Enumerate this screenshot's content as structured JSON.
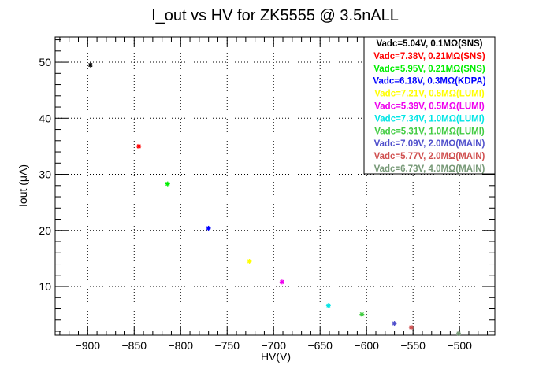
{
  "chart_data": {
    "type": "scatter",
    "title": "I_out vs HV for ZK5555 @ 3.5nALL",
    "xlabel": "HV(V)",
    "ylabel": "Iout (μA)",
    "xlim": [
      -935,
      -462
    ],
    "ylim": [
      1.3,
      54.5
    ],
    "xticks": [
      -900,
      -850,
      -800,
      -750,
      -700,
      -650,
      -600,
      -550,
      -500
    ],
    "yticks": [
      10,
      20,
      30,
      40,
      50
    ],
    "xtick_labels": [
      "−900",
      "−850",
      "−800",
      "−750",
      "−700",
      "−650",
      "−600",
      "−550",
      "−500"
    ],
    "ytick_labels": [
      "10",
      "20",
      "30",
      "40",
      "50"
    ],
    "grid": true,
    "legend_position": "top-right",
    "series": [
      {
        "name": "Vadc=5.04V, 0.1MΩ(SNS)",
        "color": "#000000",
        "x": [
          -897
        ],
        "y": [
          49.5
        ]
      },
      {
        "name": "Vadc=7.38V, 0.21MΩ(SNS)",
        "color": "#ff0000",
        "x": [
          -845
        ],
        "y": [
          35.0
        ]
      },
      {
        "name": "Vadc=5.95V, 0.21MΩ(SNS)",
        "color": "#00ee00",
        "x": [
          -814
        ],
        "y": [
          28.3
        ]
      },
      {
        "name": "Vadc=6.18V, 0.3MΩ(KDPA)",
        "color": "#0000ff",
        "x": [
          -770
        ],
        "y": [
          20.4
        ]
      },
      {
        "name": "Vadc=7.21V, 0.5MΩ(LUMI)",
        "color": "#ffff00",
        "x": [
          -726
        ],
        "y": [
          14.5
        ]
      },
      {
        "name": "Vadc=5.39V, 0.5MΩ(LUMI)",
        "color": "#ee00ee",
        "x": [
          -691
        ],
        "y": [
          10.8
        ]
      },
      {
        "name": "Vadc=7.34V, 1.0MΩ(LUMI)",
        "color": "#00e5e5",
        "x": [
          -641
        ],
        "y": [
          6.6
        ]
      },
      {
        "name": "Vadc=5.31V, 1.0MΩ(LUMI)",
        "color": "#44cc44",
        "x": [
          -605
        ],
        "y": [
          5.0
        ]
      },
      {
        "name": "Vadc=7.09V, 2.0MΩ(MAIN)",
        "color": "#5050cc",
        "x": [
          -570
        ],
        "y": [
          3.4
        ]
      },
      {
        "name": "Vadc=5.77V, 2.0MΩ(MAIN)",
        "color": "#d05050",
        "x": [
          -552
        ],
        "y": [
          2.7
        ]
      },
      {
        "name": "Vadc=6.73V, 4.0MΩ(MAIN)",
        "color": "#779977",
        "x": [
          -501
        ],
        "y": [
          1.6
        ]
      }
    ]
  }
}
